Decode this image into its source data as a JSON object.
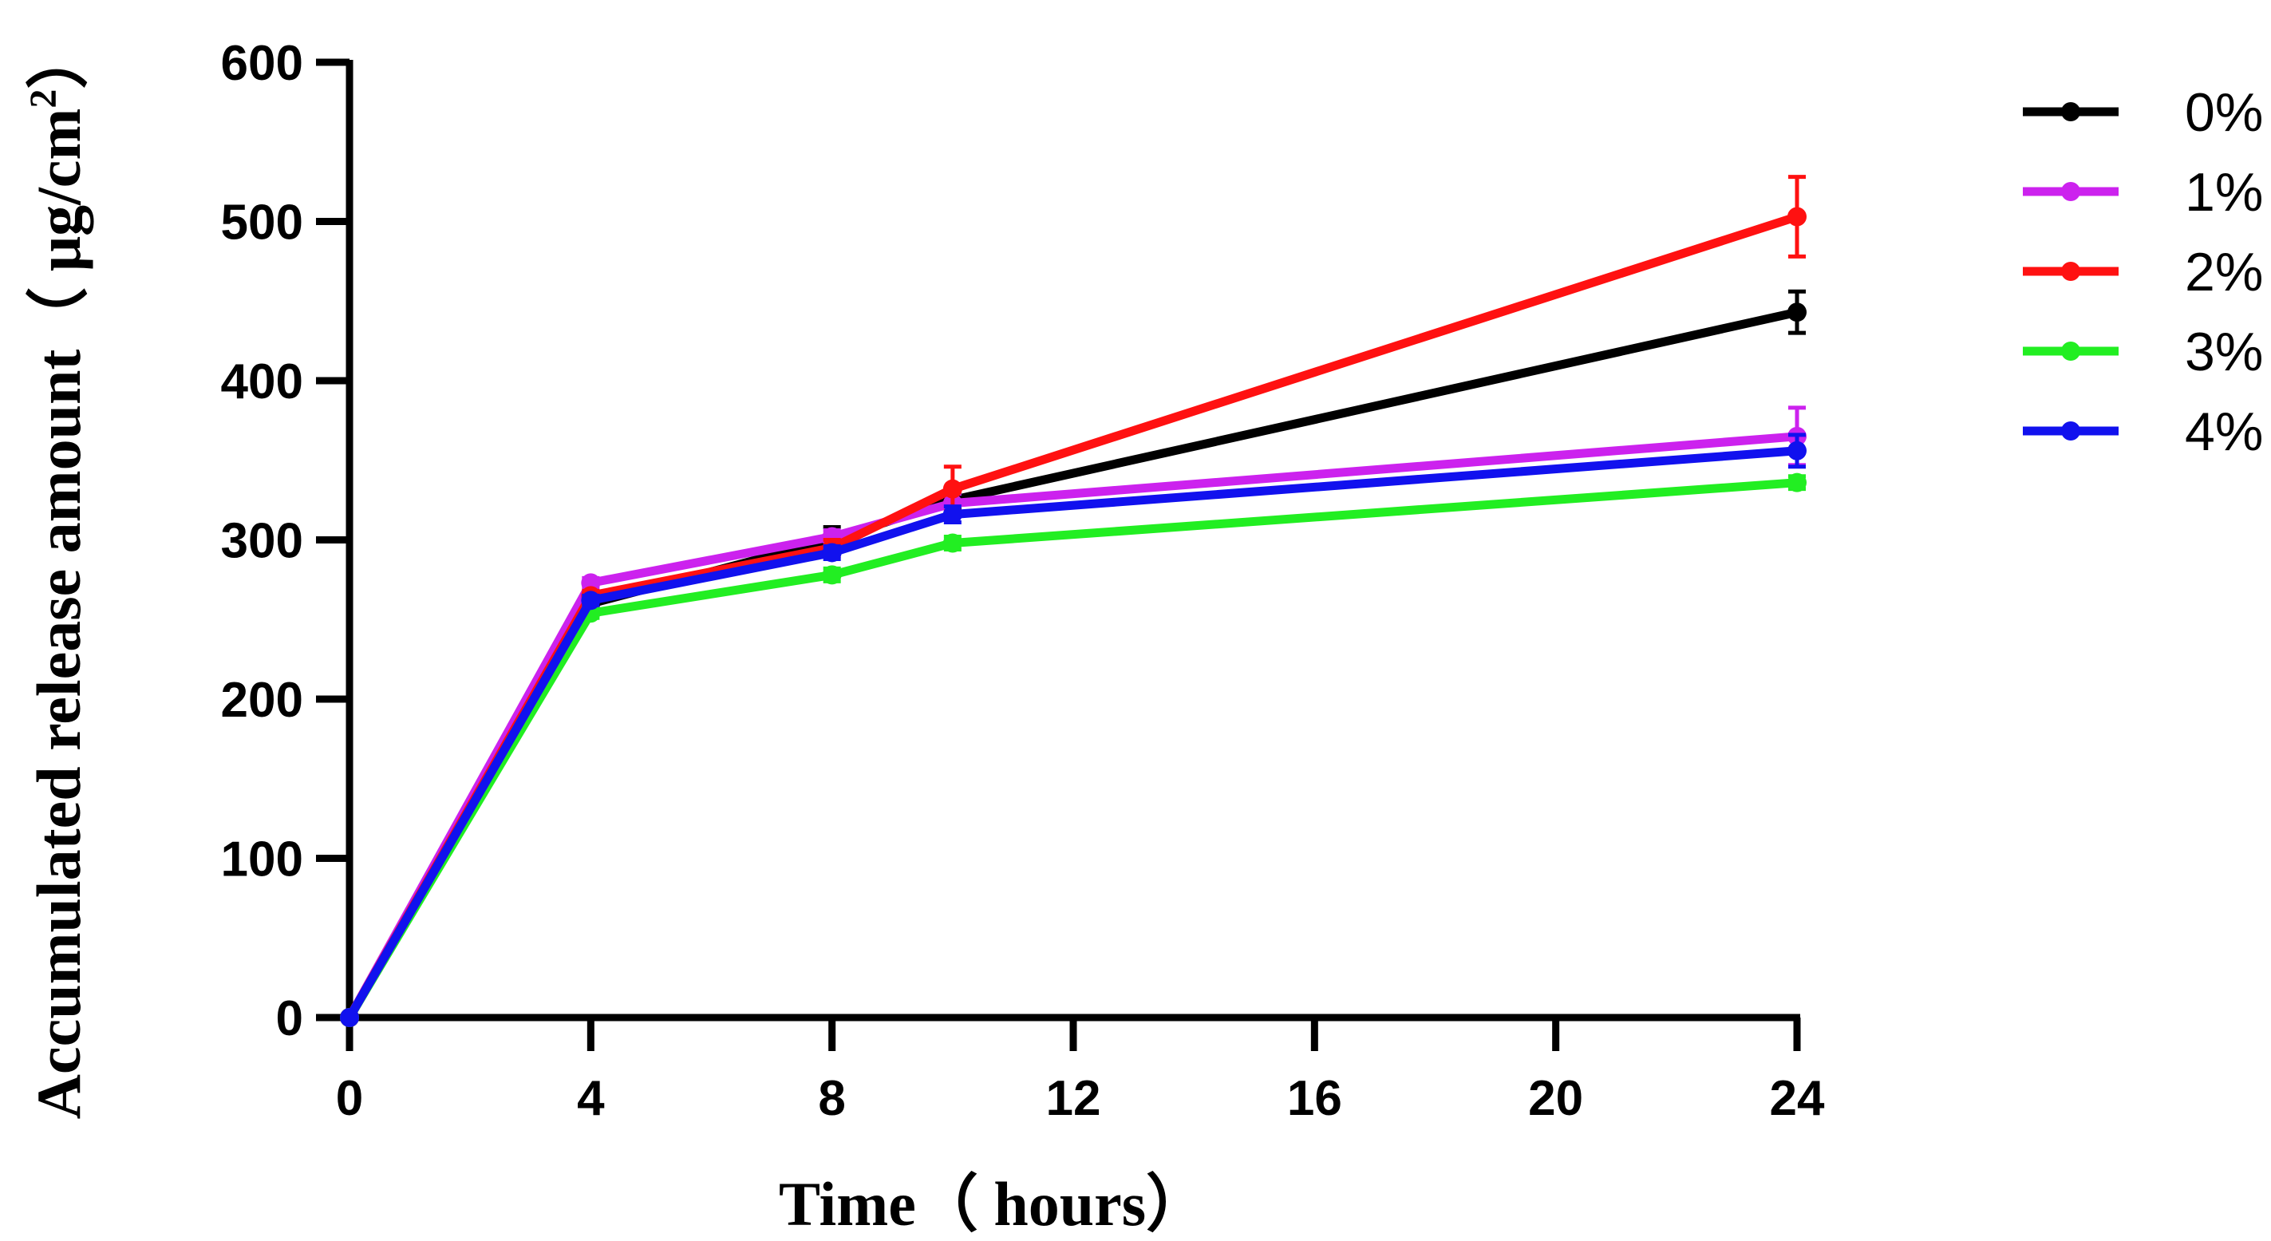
{
  "chart_data": {
    "type": "line",
    "title": "",
    "xlabel": "Time（ hours）",
    "ylabel_main": "Accumulated release amount（ μg/cm",
    "ylabel_sup": "2",
    "ylabel_close": "）",
    "xlim": [
      0,
      24
    ],
    "ylim": [
      0,
      600
    ],
    "xticks": [
      0,
      4,
      8,
      12,
      16,
      20,
      24
    ],
    "xtick_labels": [
      "0",
      "4",
      "8",
      "12",
      "16",
      "20",
      "24"
    ],
    "yticks": [
      0,
      100,
      200,
      300,
      400,
      500,
      600
    ],
    "ytick_labels": [
      "0",
      "100",
      "200",
      "300",
      "400",
      "500",
      "600"
    ],
    "x": [
      0,
      4,
      8,
      10,
      24
    ],
    "legend_position": "right",
    "series": [
      {
        "name": "0%",
        "color": "#000000",
        "values": [
          0,
          260,
          300,
          325,
          443
        ],
        "errors": [
          0,
          4,
          8,
          5,
          13
        ]
      },
      {
        "name": "1%",
        "color": "#cc22ee",
        "values": [
          0,
          273,
          302,
          323,
          365
        ],
        "errors": [
          0,
          3,
          4,
          6,
          18
        ]
      },
      {
        "name": "2%",
        "color": "#ff1111",
        "values": [
          0,
          265,
          295,
          332,
          503
        ],
        "errors": [
          0,
          3,
          5,
          14,
          25
        ]
      },
      {
        "name": "3%",
        "color": "#22ee22",
        "values": [
          0,
          254,
          278,
          298,
          336
        ],
        "errors": [
          0,
          3,
          4,
          4,
          4
        ]
      },
      {
        "name": "4%",
        "color": "#1111ee",
        "values": [
          0,
          262,
          292,
          316,
          356
        ],
        "errors": [
          0,
          3,
          4,
          5,
          10
        ]
      }
    ]
  }
}
